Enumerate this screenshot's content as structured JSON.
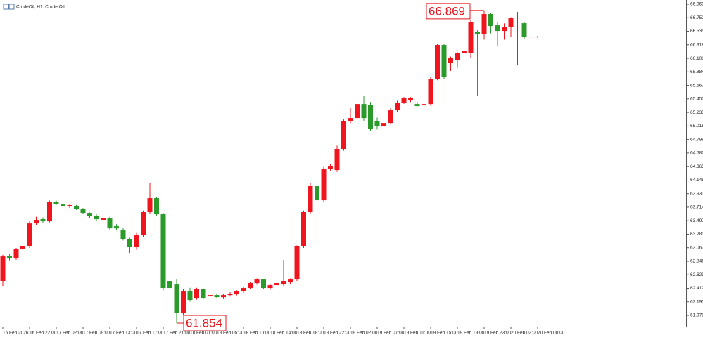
{
  "chart_data": {
    "type": "candlestick",
    "title": "CrudeOil, H1:  Crude Oil",
    "categories": [
      "16 Feb 2026",
      null,
      null,
      null,
      "16 Feb 22:00",
      null,
      null,
      null,
      "17 Feb 02:00",
      null,
      null,
      null,
      "17 Feb 09:00",
      null,
      null,
      null,
      "17 Feb 13:00",
      null,
      null,
      null,
      "17 Feb 17:00",
      null,
      null,
      null,
      "17 Feb 21:00",
      null,
      null,
      null,
      "18 Feb 01:00",
      null,
      null,
      null,
      "18 Feb 05:00",
      null,
      null,
      null,
      "18 Feb 10:00",
      null,
      null,
      null,
      "18 Feb 14:00",
      null,
      null,
      null,
      "18 Feb 18:00",
      null,
      null,
      null,
      "18 Feb 22:00",
      null,
      null,
      null,
      "19 Feb 02:00",
      null,
      null,
      null,
      "19 Feb 07:00",
      null,
      null,
      null,
      "19 Feb 11:00",
      null,
      null,
      null,
      "19 Feb 15:00",
      null,
      null,
      null,
      "19 Feb 19:00",
      null,
      null,
      null,
      "19 Feb 23:00",
      null,
      null,
      null,
      "20 Feb 03:00",
      null,
      null,
      null,
      "20 Feb 08:00"
    ],
    "open": [
      62.53,
      62.924,
      62.89,
      63.037,
      63.093,
      63.453,
      63.521,
      63.487,
      63.792,
      63.758,
      63.724,
      63.735,
      63.679,
      63.611,
      63.577,
      63.51,
      63.544,
      63.408,
      63.352,
      63.206,
      63.071,
      63.262,
      63.634,
      63.859,
      63.6,
      62.53,
      62.473,
      62.023,
      62.361,
      62.248,
      62.395,
      62.282,
      62.304,
      62.27,
      62.304,
      62.327,
      62.361,
      62.417,
      62.496,
      62.552,
      62.417,
      62.462,
      62.473,
      62.507,
      62.552,
      63.093,
      63.634,
      64.051,
      63.825,
      64.332,
      64.31,
      64.648,
      65.098,
      65.143,
      65.368,
      65.347,
      65.098,
      65.008,
      65.064,
      65.267,
      65.391,
      65.436,
      65.368,
      65.347,
      65.368,
      65.774,
      66.315,
      66.022,
      66.078,
      66.18,
      66.191,
      66.529,
      66.495,
      66.811,
      66.63,
      66.54,
      66.608,
      66.743,
      66.664,
      66.439,
      66.45
    ],
    "high": [
      62.95,
      62.96,
      63.06,
      63.12,
      63.5,
      63.56,
      63.55,
      63.82,
      63.82,
      63.78,
      63.77,
      63.75,
      63.7,
      63.63,
      63.6,
      63.56,
      63.56,
      63.44,
      63.38,
      63.22,
      63.3,
      63.66,
      64.107,
      63.88,
      63.62,
      63.1,
      62.56,
      62.4,
      62.42,
      62.42,
      62.41,
      62.32,
      62.33,
      62.32,
      62.35,
      62.38,
      62.44,
      62.51,
      62.57,
      62.56,
      62.48,
      62.52,
      62.87,
      62.57,
      63.1,
      63.66,
      64.1,
      64.06,
      64.36,
      64.4,
      64.7,
      65.12,
      65.3,
      65.4,
      65.5,
      65.4,
      65.15,
      65.08,
      65.3,
      65.42,
      65.48,
      65.48,
      65.4,
      65.42,
      65.8,
      66.33,
      66.34,
      66.13,
      66.2,
      66.24,
      66.71,
      66.55,
      66.869,
      66.83,
      66.68,
      66.66,
      66.76,
      66.845,
      66.68,
      66.47,
      66.46
    ],
    "low": [
      62.45,
      62.86,
      62.87,
      63.0,
      63.06,
      63.43,
      63.46,
      63.47,
      63.75,
      63.7,
      63.7,
      63.67,
      63.6,
      63.54,
      63.5,
      63.49,
      63.35,
      63.34,
      63.18,
      62.98,
      63.03,
      63.24,
      63.6,
      63.58,
      62.38,
      62.4,
      61.854,
      61.98,
      62.2,
      62.23,
      62.24,
      62.26,
      62.25,
      62.24,
      62.28,
      62.3,
      62.34,
      62.4,
      62.47,
      62.4,
      62.39,
      62.44,
      62.45,
      62.48,
      62.53,
      63.06,
      63.6,
      63.8,
      63.8,
      64.3,
      64.28,
      64.62,
      65.06,
      65.1,
      65.1,
      64.94,
      64.96,
      64.92,
      65.04,
      65.24,
      65.37,
      65.4,
      65.33,
      65.32,
      65.34,
      65.75,
      65.77,
      65.9,
      65.95,
      66.15,
      66.1,
      65.5,
      66.4,
      66.5,
      66.3,
      66.4,
      66.44,
      65.988,
      66.42,
      66.42,
      66.43
    ],
    "close": [
      62.924,
      62.89,
      63.037,
      63.093,
      63.453,
      63.51,
      63.487,
      63.792,
      63.769,
      63.724,
      63.747,
      63.69,
      63.622,
      63.566,
      63.521,
      63.544,
      63.374,
      63.374,
      63.206,
      63.071,
      63.262,
      63.634,
      63.859,
      63.6,
      62.417,
      62.417,
      62.023,
      62.361,
      62.226,
      62.395,
      62.248,
      62.304,
      62.27,
      62.304,
      62.327,
      62.361,
      62.417,
      62.496,
      62.552,
      62.417,
      62.462,
      62.496,
      62.53,
      62.552,
      63.093,
      63.634,
      64.051,
      63.825,
      64.332,
      64.366,
      64.648,
      65.098,
      65.143,
      65.368,
      65.143,
      64.974,
      65.008,
      65.064,
      65.267,
      65.391,
      65.459,
      65.459,
      65.335,
      65.368,
      65.774,
      66.315,
      65.797,
      66.112,
      66.191,
      66.225,
      66.686,
      66.495,
      66.811,
      66.619,
      66.54,
      66.608,
      66.743,
      66.754,
      66.439,
      66.45,
      66.44
    ],
    "up_color": "#f0141e",
    "down_color": "#2a9a2a",
    "ylim": [
      61.798,
      67.014
    ],
    "yticks": [
      61.978,
      62.195,
      62.412,
      62.629,
      62.846,
      63.063,
      {
        "value": 63.28,
        "label": "63.280"
      },
      63.497,
      63.714,
      63.931,
      64.148,
      64.365,
      64.582,
      64.799,
      65.016,
      65.233,
      {
        "value": 65.45,
        "label": "65.450"
      },
      65.667,
      65.884,
      66.101,
      66.318,
      66.535,
      66.752,
      66.969
    ],
    "high_label": 66.869,
    "low_label": 61.854
  }
}
